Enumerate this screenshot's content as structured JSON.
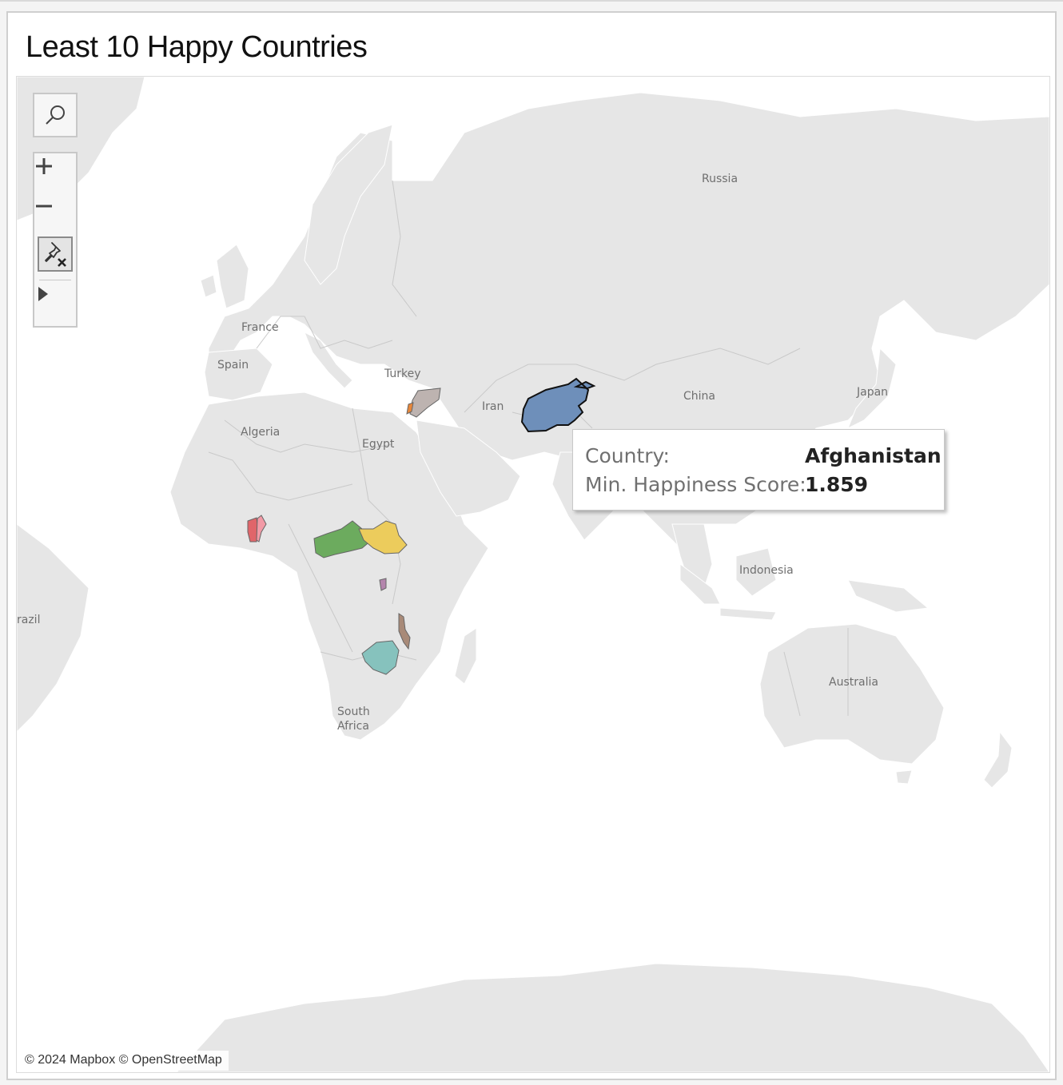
{
  "title": "Least 10 Happy Countries",
  "map": {
    "place_labels": [
      {
        "id": "russia",
        "text": "Russia"
      },
      {
        "id": "france",
        "text": "France"
      },
      {
        "id": "spain",
        "text": "Spain"
      },
      {
        "id": "turkey",
        "text": "Turkey"
      },
      {
        "id": "iran",
        "text": "Iran"
      },
      {
        "id": "china",
        "text": "China"
      },
      {
        "id": "japan",
        "text": "Japan"
      },
      {
        "id": "algeria",
        "text": "Algeria"
      },
      {
        "id": "egypt",
        "text": "Egypt"
      },
      {
        "id": "indonesia",
        "text": "Indonesia"
      },
      {
        "id": "brazil",
        "text": "razil"
      },
      {
        "id": "australia",
        "text": "Australia"
      },
      {
        "id": "south_africa_1",
        "text": "South"
      },
      {
        "id": "south_africa_2",
        "text": "Africa"
      }
    ],
    "highlight_colors": {
      "afghanistan": "#6e8fba",
      "syria": "#bdb3b0",
      "lebanon": "#e8873a",
      "benin": "#e0656a",
      "togo": "#f29aa6",
      "central_african_republic": "#6cab5e",
      "south_sudan": "#eccc5c",
      "burundi": "#b485ad",
      "malawi": "#a88a78",
      "zimbabwe": "#86c2bd"
    },
    "attribution": "© 2024 Mapbox © OpenStreetMap"
  },
  "toolbar": {
    "search_icon": "search-icon",
    "zoom_in_icon": "plus-icon",
    "zoom_out_icon": "minus-icon",
    "pin_icon": "unpin-icon",
    "expand_icon": "play-icon"
  },
  "tooltip": {
    "country_label": "Country:",
    "country_value": "Afghanistan",
    "score_label": "Min. Happiness Score:",
    "score_value": "1.859"
  }
}
